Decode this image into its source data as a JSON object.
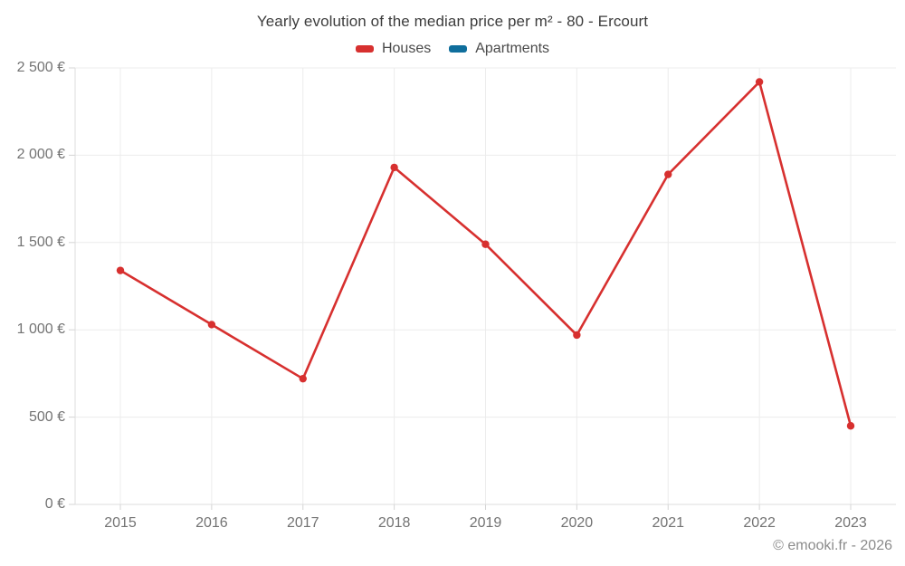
{
  "title": "Yearly evolution of the median price per m² - 80 - Ercourt",
  "legend": {
    "items": [
      {
        "label": "Houses",
        "color": "#d7302f"
      },
      {
        "label": "Apartments",
        "color": "#0f6e9c"
      }
    ]
  },
  "footer": {
    "text": "© emooki.fr - 2026"
  },
  "colors": {
    "grid": "#ececec",
    "axis": "#dcdcdc",
    "tick": "#d4d4d4",
    "title_text": "#3d3d3d",
    "tick_text": "#737373",
    "footer_text": "#8b8b8b"
  },
  "chart_data": {
    "type": "line",
    "title": "Yearly evolution of the median price per m² - 80 - Ercourt",
    "categories": [
      "2015",
      "2016",
      "2017",
      "2018",
      "2019",
      "2020",
      "2021",
      "2022",
      "2023"
    ],
    "series": [
      {
        "name": "Houses",
        "color": "#d7302f",
        "values": [
          1340,
          1030,
          720,
          1930,
          1490,
          970,
          1890,
          2420,
          450
        ]
      },
      {
        "name": "Apartments",
        "color": "#0f6e9c",
        "values": []
      }
    ],
    "xlabel": "",
    "ylabel": "",
    "ylim": [
      0,
      2500
    ],
    "y_ticks": [
      0,
      500,
      1000,
      1500,
      2000,
      2500
    ],
    "y_tick_labels": [
      "0 €",
      "500 €",
      "1 000 €",
      "1 500 €",
      "2 000 €",
      "2 500 €"
    ],
    "currency": "€",
    "grid": true,
    "legend_position": "top"
  }
}
